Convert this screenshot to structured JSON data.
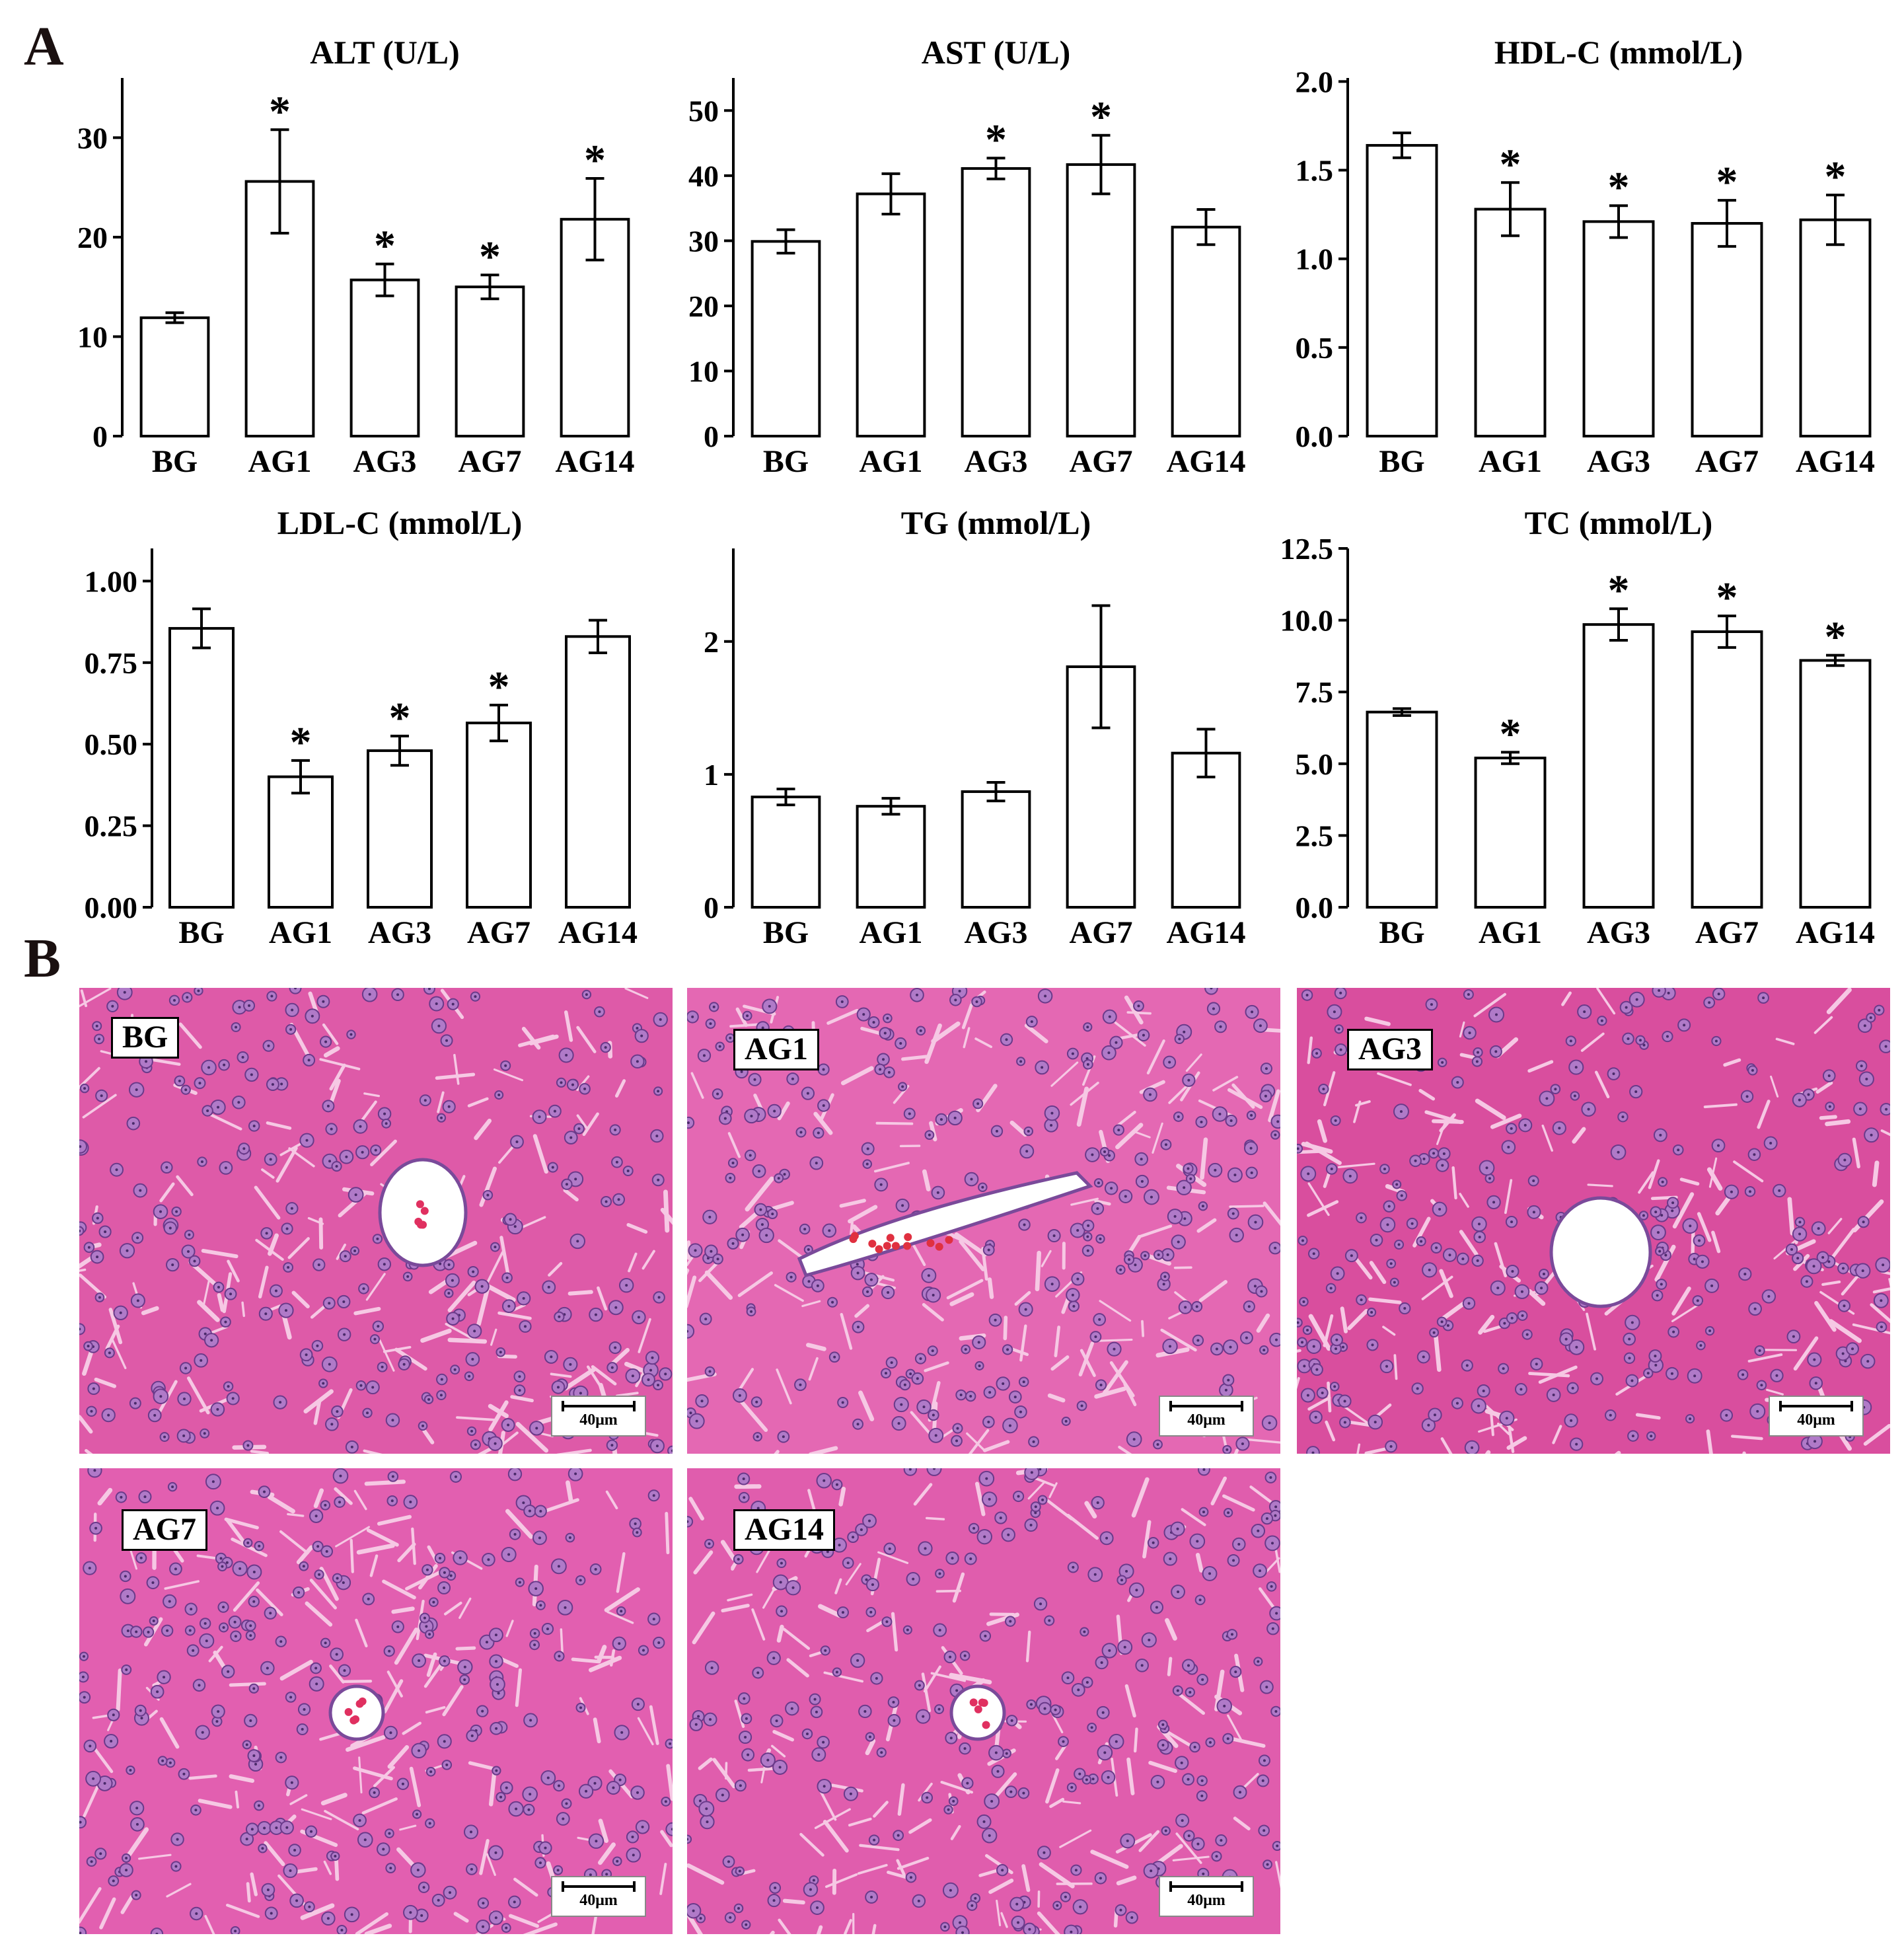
{
  "panels": {
    "a": "A",
    "b": "B"
  },
  "chart_data": [
    {
      "type": "bar",
      "title": "ALT (U/L)",
      "categories": [
        "BG",
        "AG1",
        "AG3",
        "AG7",
        "AG14"
      ],
      "values": [
        11.9,
        25.6,
        15.7,
        15.0,
        21.8
      ],
      "errors": [
        0.5,
        5.2,
        1.6,
        1.2,
        4.1
      ],
      "significant": [
        false,
        true,
        true,
        true,
        true
      ],
      "ylim": [
        0,
        36
      ],
      "yticks": [
        0,
        10,
        20,
        30
      ],
      "yticklabels": [
        "0",
        "10",
        "20",
        "30"
      ],
      "marker": "*"
    },
    {
      "type": "bar",
      "title": "AST (U/L)",
      "categories": [
        "BG",
        "AG1",
        "AG3",
        "AG7",
        "AG14"
      ],
      "values": [
        29.9,
        37.2,
        41.1,
        41.7,
        32.1
      ],
      "errors": [
        1.8,
        3.1,
        1.6,
        4.5,
        2.7
      ],
      "significant": [
        false,
        false,
        true,
        true,
        false
      ],
      "ylim": [
        0,
        55
      ],
      "yticks": [
        0,
        10,
        20,
        30,
        40,
        50
      ],
      "yticklabels": [
        "0",
        "10",
        "20",
        "30",
        "40",
        "50"
      ],
      "marker": "*"
    },
    {
      "type": "bar",
      "title": "HDL-C (mmol/L)",
      "categories": [
        "BG",
        "AG1",
        "AG3",
        "AG7",
        "AG14"
      ],
      "values": [
        1.64,
        1.28,
        1.21,
        1.2,
        1.22
      ],
      "errors": [
        0.07,
        0.15,
        0.09,
        0.13,
        0.14
      ],
      "significant": [
        false,
        true,
        true,
        true,
        true
      ],
      "ylim": [
        0,
        2.02
      ],
      "yticks": [
        0,
        0.5,
        1.0,
        1.5,
        2.0
      ],
      "yticklabels": [
        "0.0",
        "0.5",
        "1.0",
        "1.5",
        "2.0"
      ],
      "marker": "*"
    },
    {
      "type": "bar",
      "title": "LDL-C (mmol/L)",
      "categories": [
        "BG",
        "AG1",
        "AG3",
        "AG7",
        "AG14"
      ],
      "values": [
        0.855,
        0.4,
        0.48,
        0.565,
        0.83
      ],
      "errors": [
        0.06,
        0.05,
        0.045,
        0.055,
        0.05
      ],
      "significant": [
        false,
        true,
        true,
        true,
        false
      ],
      "ylim": [
        0,
        1.1
      ],
      "yticks": [
        0,
        0.25,
        0.5,
        0.75,
        1.0
      ],
      "yticklabels": [
        "0.00",
        "0.25",
        "0.50",
        "0.75",
        "1.00"
      ],
      "marker": "*"
    },
    {
      "type": "bar",
      "title": "TG (mmol/L)",
      "categories": [
        "BG",
        "AG1",
        "AG3",
        "AG7",
        "AG14"
      ],
      "values": [
        0.83,
        0.76,
        0.87,
        1.81,
        1.16
      ],
      "errors": [
        0.06,
        0.06,
        0.07,
        0.46,
        0.18
      ],
      "significant": [
        false,
        false,
        false,
        false,
        false
      ],
      "ylim": [
        0,
        2.7
      ],
      "yticks": [
        0,
        1,
        2
      ],
      "yticklabels": [
        "0",
        "1",
        "2"
      ],
      "marker": "*"
    },
    {
      "type": "bar",
      "title": "TC (mmol/L)",
      "categories": [
        "BG",
        "AG1",
        "AG3",
        "AG7",
        "AG14"
      ],
      "values": [
        6.8,
        5.2,
        9.85,
        9.6,
        8.6
      ],
      "errors": [
        0.12,
        0.2,
        0.55,
        0.55,
        0.18
      ],
      "significant": [
        false,
        true,
        true,
        true,
        true
      ],
      "ylim": [
        0,
        12.5
      ],
      "yticks": [
        0,
        2.5,
        5.0,
        7.5,
        10.0,
        12.5
      ],
      "yticklabels": [
        "0.0",
        "2.5",
        "5.0",
        "7.5",
        "10.0",
        "12.5"
      ],
      "marker": "*"
    }
  ],
  "histology": [
    {
      "label": "BG",
      "scale": "40μm",
      "color": "#de5aa8",
      "vessel": "oval"
    },
    {
      "label": "AG1",
      "scale": "40μm",
      "color": "#e468b3",
      "vessel": "elongated"
    },
    {
      "label": "AG3",
      "scale": "40μm",
      "color": "#d94e9e",
      "vessel": "round"
    },
    {
      "label": "AG7",
      "scale": "40μm",
      "color": "#e25fb0",
      "vessel": "small"
    },
    {
      "label": "AG14",
      "scale": "40μm",
      "color": "#e05dad",
      "vessel": "small"
    }
  ]
}
